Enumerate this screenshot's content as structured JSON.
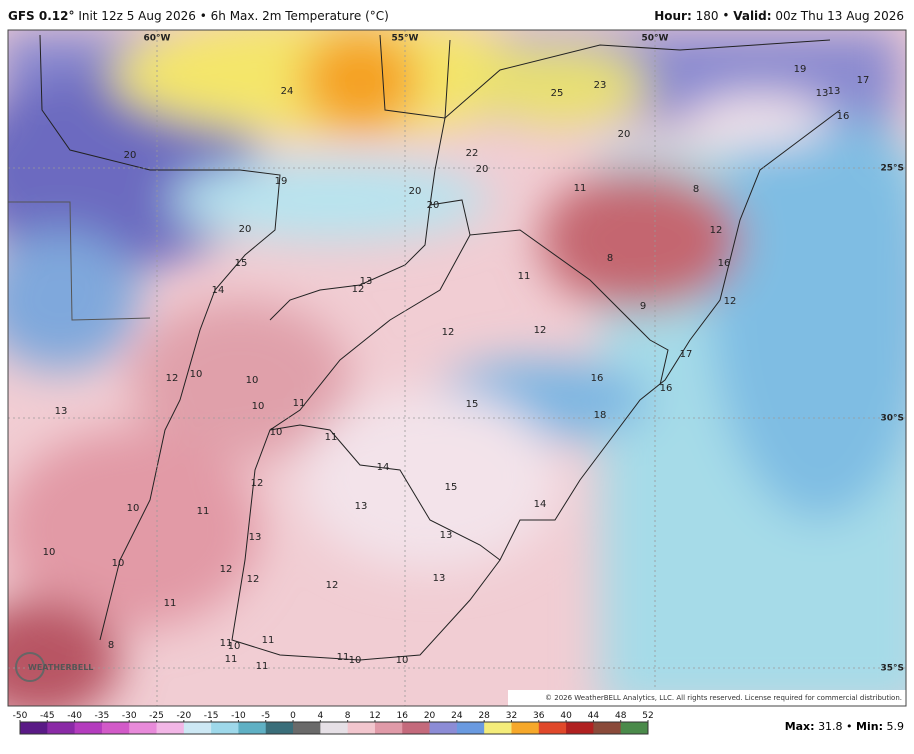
{
  "header": {
    "model": "GFS 0.12°",
    "product": "Init 12z 5 Aug 2026 • 6h Max. 2m Temperature (°C)",
    "hour_label": "Hour:",
    "hour": "180",
    "valid_label": "Valid:",
    "valid": "00z Thu 13 Aug 2026"
  },
  "map": {
    "lon_labels": [
      "60°W",
      "55°W",
      "50°W"
    ],
    "lat_labels": [
      "25°S",
      "30°S",
      "35°S"
    ],
    "values": [
      20,
      24,
      25,
      23,
      19,
      17,
      13,
      13,
      16,
      20,
      22,
      20,
      20,
      20,
      19,
      20,
      15,
      14,
      11,
      8,
      12,
      8,
      16,
      11,
      13,
      12,
      12,
      12,
      9,
      12,
      17,
      16,
      16,
      15,
      18,
      12,
      10,
      10,
      10,
      11,
      10,
      11,
      13,
      14,
      15,
      12,
      13,
      14,
      10,
      11,
      13,
      13,
      10,
      10,
      12,
      12,
      13,
      12,
      11,
      8,
      11,
      10,
      11,
      11,
      11,
      11,
      10,
      10
    ],
    "copyright": "© 2026 WeatherBELL Analytics, LLC. All rights reserved. License required for commercial distribution.",
    "logo": "WEATHERBELL"
  },
  "colorbar": {
    "ticks": [
      -50,
      -45,
      -40,
      -35,
      -30,
      -25,
      -20,
      -15,
      -10,
      -5,
      0,
      4,
      8,
      12,
      16,
      20,
      24,
      28,
      32,
      36,
      40,
      44,
      48,
      52
    ]
  },
  "footer": {
    "max_label": "Max:",
    "max": "31.8",
    "min_label": "Min:",
    "min": "5.9"
  }
}
